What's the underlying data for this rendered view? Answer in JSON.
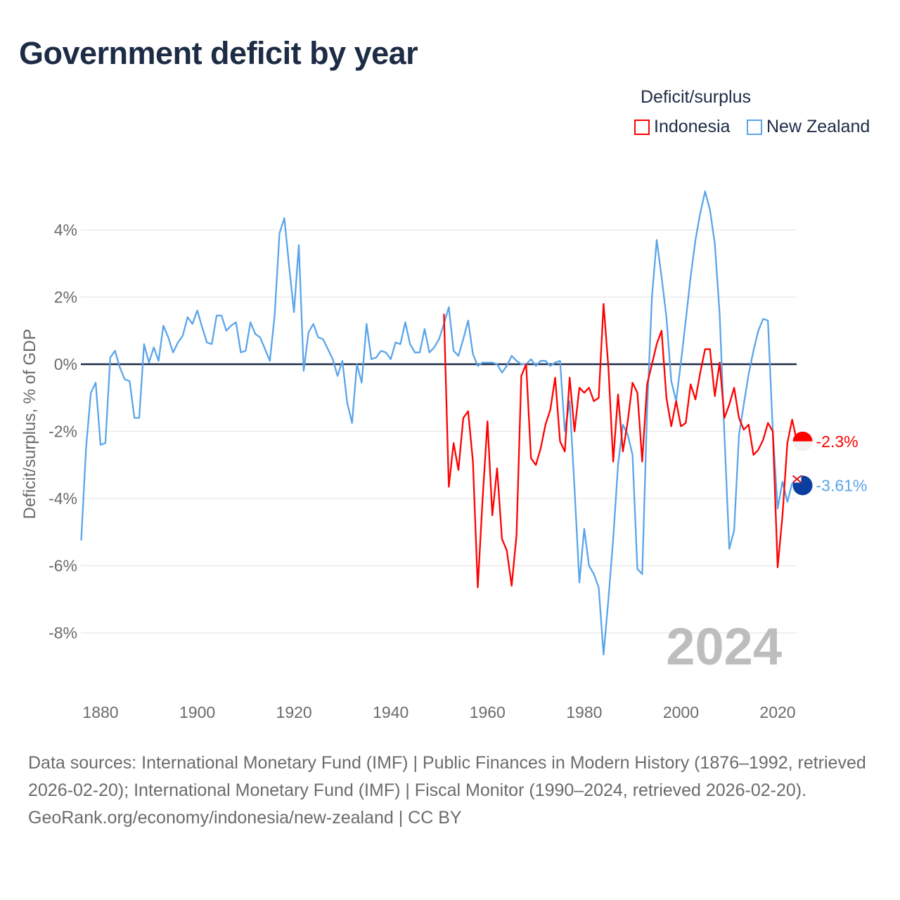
{
  "title": "Government deficit by year",
  "legend": {
    "title": "Deficit/surplus",
    "items": [
      {
        "label": "Indonesia",
        "color": "#ff0000"
      },
      {
        "label": "New Zealand",
        "color": "#5aa5ea"
      }
    ]
  },
  "chart_data": {
    "type": "line",
    "title": "Government deficit by year",
    "xlabel": "",
    "ylabel": "Deficit/surplus, % of GDP",
    "xlim": [
      1876,
      2024
    ],
    "ylim": [
      -9.5,
      5.5
    ],
    "xticks": [
      1880,
      1900,
      1920,
      1940,
      1960,
      1980,
      2000,
      2020
    ],
    "yticks": [
      4,
      2,
      0,
      -2,
      -4,
      -6,
      -8
    ],
    "ytick_labels": [
      "4%",
      "2%",
      "0%",
      "-2%",
      "-4%",
      "-6%",
      "-8%"
    ],
    "xtick_labels": [
      "1880",
      "1900",
      "1920",
      "1940",
      "1960",
      "1980",
      "2000",
      "2020"
    ],
    "grid": true,
    "year_watermark": "2024",
    "series": [
      {
        "name": "Indonesia",
        "color": "#ff0000",
        "end_label": "-2.3%",
        "start_year": 1951,
        "values": [
          1.5,
          -3.65,
          -2.35,
          -3.15,
          -1.6,
          -1.4,
          -2.9,
          -6.65,
          -4.0,
          -1.7,
          -4.5,
          -3.1,
          -5.2,
          -5.55,
          -6.6,
          -5.1,
          -0.35,
          0.0,
          -2.8,
          -3.0,
          -2.5,
          -1.8,
          -1.35,
          -0.4,
          -2.3,
          -2.6,
          -0.4,
          -2.0,
          -0.7,
          -0.85,
          -0.7,
          -1.1,
          -1.0,
          1.8,
          -0.1,
          -2.9,
          -0.9,
          -2.6,
          -1.7,
          -0.55,
          -0.85,
          -2.9,
          -0.6,
          0.0,
          0.6,
          1.0,
          -1.0,
          -1.85,
          -1.1,
          -1.85,
          -1.75,
          -0.6,
          -1.05,
          -0.25,
          0.45,
          0.45,
          -0.95,
          0.05,
          -1.6,
          -1.2,
          -0.7,
          -1.6,
          -1.95,
          -1.8,
          -2.7,
          -2.55,
          -2.25,
          -1.75,
          -2.0,
          -6.05,
          -4.5,
          -2.35,
          -1.65,
          -2.3
        ]
      },
      {
        "name": "New Zealand",
        "color": "#5aa5ea",
        "end_label": "-3.61%",
        "start_year": 1876,
        "values": [
          -5.25,
          -2.5,
          -0.85,
          -0.55,
          -2.4,
          -2.35,
          0.2,
          0.4,
          -0.1,
          -0.45,
          -0.5,
          -1.6,
          -1.6,
          0.6,
          0.05,
          0.5,
          0.1,
          1.15,
          0.8,
          0.35,
          0.65,
          0.85,
          1.4,
          1.2,
          1.6,
          1.1,
          0.65,
          0.6,
          1.45,
          1.45,
          1.0,
          1.15,
          1.25,
          0.35,
          0.4,
          1.25,
          0.9,
          0.8,
          0.45,
          0.1,
          1.45,
          3.9,
          4.35,
          2.9,
          1.55,
          3.55,
          -0.2,
          0.95,
          1.2,
          0.8,
          0.75,
          0.45,
          0.15,
          -0.35,
          0.1,
          -1.15,
          -1.75,
          0.0,
          -0.55,
          1.2,
          0.15,
          0.2,
          0.4,
          0.35,
          0.15,
          0.65,
          0.6,
          1.25,
          0.6,
          0.35,
          0.35,
          1.05,
          0.35,
          0.5,
          0.75,
          1.2,
          1.7,
          0.4,
          0.25,
          0.75,
          1.3,
          0.3,
          -0.05,
          0.05,
          0.05,
          0.05,
          0.0,
          -0.25,
          -0.05,
          0.25,
          0.1,
          0.0,
          0.0,
          0.15,
          -0.05,
          0.1,
          0.1,
          -0.05,
          0.05,
          0.1,
          -2.0,
          -1.1,
          -3.7,
          -6.5,
          -4.9,
          -6.0,
          -6.25,
          -6.65,
          -8.65,
          -7.0,
          -5.2,
          -3.0,
          -1.8,
          -2.1,
          -2.7,
          -6.1,
          -6.25,
          -1.4,
          2.0,
          3.7,
          2.6,
          1.4,
          -0.5,
          -1.1,
          0.05,
          1.3,
          2.6,
          3.7,
          4.5,
          5.15,
          4.6,
          3.6,
          1.5,
          -2.1,
          -5.5,
          -4.95,
          -2.1,
          -1.2,
          -0.3,
          0.4,
          1.0,
          1.35,
          1.3,
          -2.0,
          -4.3,
          -3.5,
          -4.1,
          -3.55,
          -3.61
        ]
      }
    ]
  },
  "sources": {
    "line1": "Data sources: International Monetary Fund (IMF) | Public Finances in Modern History (1876–1992, retrieved 2026-02-20); International Monetary Fund (IMF) | Fiscal Monitor (1990–2024, retrieved 2026-02-20).",
    "line2": "GeoRank.org/economy/indonesia/new-zealand | CC BY"
  }
}
